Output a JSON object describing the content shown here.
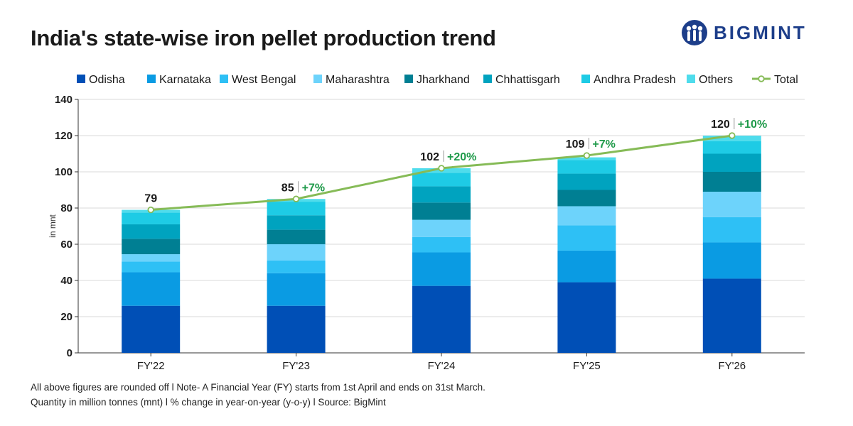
{
  "title": "India's state-wise iron pellet production trend",
  "brand": {
    "name": "BIGMINT",
    "logo_icon": "bigmint-people-icon",
    "color": "#1d3e8a"
  },
  "footer": {
    "line1": "All above figures are rounded off  l  Note- A Financial Year (FY) starts from 1st April and ends on 31st March.",
    "line2": "Quantity in million tonnes (mnt)  l  % change in year-on-year (y-o-y)  l  Source: BigMint"
  },
  "chart_data": {
    "type": "bar",
    "stacked": true,
    "categories": [
      "FY'22",
      "FY'23",
      "FY'24",
      "FY'25",
      "FY'26"
    ],
    "ylabel": "in mnt",
    "xlabel": "",
    "ylim": [
      0,
      140
    ],
    "yticks": [
      0,
      20,
      40,
      60,
      80,
      100,
      120,
      140
    ],
    "grid": true,
    "legend_position": "top",
    "series": [
      {
        "name": "Odisha",
        "color": "#004fb6",
        "values": [
          26,
          26,
          37,
          39,
          41
        ]
      },
      {
        "name": "Karnataka",
        "color": "#0a9be3",
        "values": [
          18.5,
          18,
          18.5,
          17.5,
          20
        ]
      },
      {
        "name": "West Bengal",
        "color": "#2ec0f5",
        "values": [
          6,
          7,
          8.5,
          14,
          14
        ]
      },
      {
        "name": "Maharashtra",
        "color": "#6dd3fb",
        "values": [
          4,
          9,
          9.5,
          10.5,
          14
        ]
      },
      {
        "name": "Jharkhand",
        "color": "#007f93",
        "values": [
          8.5,
          8,
          9.5,
          9,
          11
        ]
      },
      {
        "name": "Chhattisgarh",
        "color": "#00a3bf",
        "values": [
          8,
          8,
          9,
          9,
          10
        ]
      },
      {
        "name": "Andhra Pradesh",
        "color": "#1ecbe5",
        "values": [
          6.5,
          7.5,
          7.5,
          7.5,
          7
        ]
      },
      {
        "name": "Others",
        "color": "#4fdcec",
        "values": [
          1.5,
          1.5,
          2.5,
          1.5,
          3
        ]
      }
    ],
    "total": {
      "name": "Total",
      "color": "#86bb57",
      "values": [
        79,
        85,
        102,
        109,
        120
      ],
      "labels": [
        "79",
        "85",
        "102",
        "109",
        "120"
      ],
      "yoy_labels": [
        "",
        "+7%",
        "+20%",
        "+7%",
        "+10%"
      ],
      "yoy_color": "#1f9a4a"
    }
  }
}
